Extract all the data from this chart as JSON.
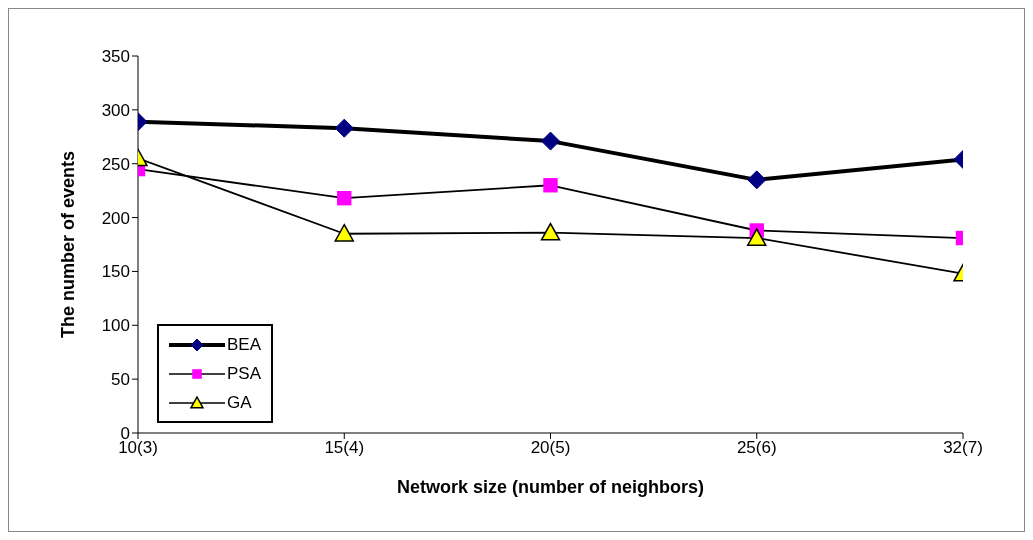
{
  "chart_data": {
    "type": "line",
    "xlabel": "Network size (number of neighbors)",
    "ylabel": "The number of events",
    "categories": [
      "10(3)",
      "15(4)",
      "20(5)",
      "25(6)",
      "32(7)"
    ],
    "series": [
      {
        "name": "BEA",
        "color": "#000080",
        "marker": "diamond",
        "values": [
          289,
          283,
          271,
          235,
          254
        ]
      },
      {
        "name": "PSA",
        "color": "#ff00ff",
        "marker": "square",
        "values": [
          245,
          218,
          230,
          188,
          181
        ]
      },
      {
        "name": "GA",
        "color": "#ffff00",
        "marker": "triangle",
        "values": [
          255,
          185,
          186,
          181,
          148
        ]
      }
    ],
    "ylim": [
      0,
      350
    ],
    "yticks": [
      0,
      50,
      100,
      150,
      200,
      250,
      300,
      350
    ],
    "grid": false,
    "legend": "bottom left"
  }
}
